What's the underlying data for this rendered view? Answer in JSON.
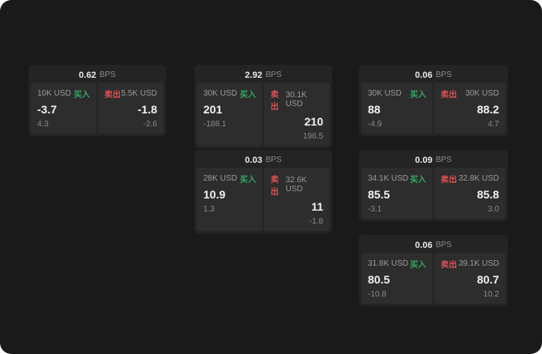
{
  "labels": {
    "bps": "BPS",
    "buy": "买入",
    "sell": "卖出"
  },
  "colors": {
    "background": "#1a1a1a",
    "card": "#242424",
    "panel": "#2d2d2d",
    "buy": "#34a862",
    "sell": "#e05151"
  },
  "cards": [
    {
      "bps": "0.62",
      "buy_amount": "10K USD",
      "buy_value": "-3.7",
      "buy_sub": "4.3",
      "sell_amount": "5.5K USD",
      "sell_value": "-1.8",
      "sell_sub": "-2.6"
    },
    {
      "bps": "2.92",
      "buy_amount": "30K USD",
      "buy_value": "201",
      "buy_sub": "-188.1",
      "sell_amount": "30.1K USD",
      "sell_value": "210",
      "sell_sub": "196.5"
    },
    {
      "bps": "0.06",
      "buy_amount": "30K USD",
      "buy_value": "88",
      "buy_sub": "-4.9",
      "sell_amount": "30K USD",
      "sell_value": "88.2",
      "sell_sub": "4.7"
    },
    {
      "bps": "0.03",
      "buy_amount": "28K USD",
      "buy_value": "10.9",
      "buy_sub": "1.3",
      "sell_amount": "32.6K USD",
      "sell_value": "11",
      "sell_sub": "-1.8"
    },
    {
      "bps": "0.09",
      "buy_amount": "34.1K USD",
      "buy_value": "85.5",
      "buy_sub": "-3.1",
      "sell_amount": "32.8K USD",
      "sell_value": "85.8",
      "sell_sub": "3.0"
    },
    {
      "bps": "0.06",
      "buy_amount": "31.8K USD",
      "buy_value": "80.5",
      "buy_sub": "-10.8",
      "sell_amount": "39.1K USD",
      "sell_value": "80.7",
      "sell_sub": "10.2"
    }
  ]
}
